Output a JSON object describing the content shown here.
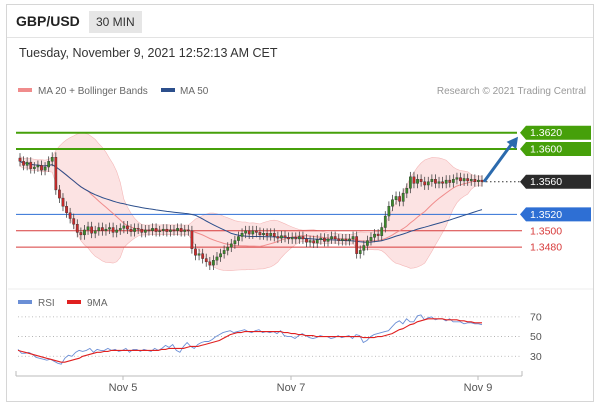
{
  "header": {
    "symbol": "GBP/USD",
    "timeframe": "30 MIN"
  },
  "datetime": "Tuesday, November 9, 2021 12:52:13 AM CET",
  "legend": {
    "ma20": {
      "label": "MA 20 + Bollinger Bands",
      "color": "#f08c8c"
    },
    "ma50": {
      "label": "MA 50",
      "color": "#2c4f8c"
    }
  },
  "credit": "Research © 2021 Trading Central",
  "rsi_legend": {
    "rsi": {
      "label": "RSI",
      "color": "#6b8fd6"
    },
    "ma9": {
      "label": "9MA",
      "color": "#e02020"
    }
  },
  "chart_data": [
    {
      "type": "candlestick",
      "title": "GBP/USD",
      "ylim": [
        1.343,
        1.366
      ],
      "x_ticks": [
        "Nov 5",
        "Nov 7",
        "Nov 9"
      ],
      "closes": [
        1.3585,
        1.358,
        1.3584,
        1.3576,
        1.3578,
        1.358,
        1.3574,
        1.3578,
        1.3585,
        1.359,
        1.355,
        1.354,
        1.353,
        1.3522,
        1.3515,
        1.3508,
        1.3498,
        1.3495,
        1.3501,
        1.3505,
        1.3497,
        1.35,
        1.3504,
        1.35,
        1.3502,
        1.3504,
        1.3498,
        1.3501,
        1.3503,
        1.3506,
        1.3502,
        1.3499,
        1.3503,
        1.3502,
        1.3498,
        1.3501,
        1.35,
        1.3503,
        1.3499,
        1.35,
        1.3502,
        1.3499,
        1.3501,
        1.35,
        1.3503,
        1.3499,
        1.3501,
        1.35,
        1.3478,
        1.347,
        1.3472,
        1.3466,
        1.3462,
        1.3458,
        1.3464,
        1.3468,
        1.3472,
        1.3476,
        1.348,
        1.3484,
        1.3488,
        1.3493,
        1.3497,
        1.35,
        1.3496,
        1.35,
        1.3498,
        1.3495,
        1.3497,
        1.3494,
        1.3497,
        1.3493,
        1.3491,
        1.3494,
        1.3492,
        1.349,
        1.3492,
        1.349,
        1.3493,
        1.349,
        1.3486,
        1.3488,
        1.3485,
        1.3489,
        1.3491,
        1.3487,
        1.349,
        1.3493,
        1.349,
        1.3488,
        1.349,
        1.3488,
        1.349,
        1.3493,
        1.3472,
        1.3476,
        1.3482,
        1.3488,
        1.3492,
        1.3496,
        1.3494,
        1.3504,
        1.3518,
        1.353,
        1.3538,
        1.3542,
        1.3536,
        1.3546,
        1.3552,
        1.3566,
        1.3558,
        1.3563,
        1.356,
        1.3556,
        1.356,
        1.3563,
        1.3558,
        1.356,
        1.3558,
        1.3562,
        1.3559,
        1.3563,
        1.3565,
        1.3561,
        1.3564,
        1.3561,
        1.3563,
        1.356,
        1.3562,
        1.356
      ],
      "levels": [
        {
          "value": 1.362,
          "label": "1.3620",
          "kind": "target"
        },
        {
          "value": 1.36,
          "label": "1.3600",
          "kind": "target"
        },
        {
          "value": 1.356,
          "label": "1.3560",
          "kind": "last"
        },
        {
          "value": 1.352,
          "label": "1.3520",
          "kind": "pivot"
        },
        {
          "value": 1.35,
          "label": "1.3500",
          "kind": "support"
        },
        {
          "value": 1.348,
          "label": "1.3480",
          "kind": "support"
        }
      ],
      "colors": {
        "up": "#3a8a2a",
        "down": "#c92a2a",
        "target": "#46a00a",
        "last": "#2b2b2b",
        "pivot": "#2e6fd4",
        "support": "#d73a3a",
        "band": "#fbd9d9"
      }
    },
    {
      "type": "line",
      "title": "RSI",
      "ylim": [
        10,
        80
      ],
      "y_ticks": [
        70,
        50,
        30
      ],
      "series": [
        {
          "name": "RSI",
          "values": [
            37,
            33,
            33,
            34,
            32,
            29,
            28,
            27,
            26,
            27,
            25,
            23,
            22,
            28,
            31,
            30,
            34,
            36,
            35,
            36,
            38,
            34,
            37,
            36,
            36,
            38,
            36,
            37,
            35,
            36,
            38,
            34,
            37,
            37,
            35,
            37,
            36,
            35,
            38,
            36,
            38,
            41,
            39,
            42,
            36,
            34,
            40,
            44,
            40,
            38,
            42,
            44,
            45,
            45,
            47,
            50,
            52,
            54,
            55,
            56,
            54,
            55,
            56,
            57,
            55,
            54,
            56,
            57,
            54,
            55,
            54,
            55,
            53,
            56,
            51,
            50,
            50,
            48,
            51,
            53,
            51,
            49,
            48,
            49,
            51,
            50,
            50,
            48,
            49,
            51,
            49,
            50,
            51,
            48,
            52,
            51,
            44,
            46,
            50,
            52,
            53,
            54,
            55,
            56,
            60,
            64,
            66,
            63,
            68,
            65,
            65,
            71,
            72,
            67,
            69,
            70,
            67,
            68,
            68,
            66,
            68,
            65,
            65,
            65,
            63,
            64,
            64,
            63,
            63,
            62
          ]
        },
        {
          "name": "9MA",
          "values": [
            36,
            35,
            34,
            33,
            32,
            31,
            30,
            29,
            28,
            27,
            26,
            25,
            24,
            24,
            25,
            26,
            27,
            28,
            30,
            31,
            32,
            33,
            34,
            34,
            35,
            35,
            36,
            36,
            36,
            36,
            36,
            36,
            36,
            36,
            36,
            36,
            36,
            36,
            36,
            36,
            37,
            37,
            38,
            38,
            38,
            38,
            38,
            39,
            40,
            40,
            40,
            41,
            42,
            43,
            44,
            45,
            46,
            48,
            50,
            52,
            53,
            54,
            54,
            55,
            55,
            55,
            55,
            55,
            55,
            55,
            55,
            55,
            55,
            55,
            54,
            54,
            53,
            53,
            52,
            52,
            51,
            51,
            51,
            50,
            50,
            50,
            50,
            50,
            50,
            50,
            50,
            50,
            50,
            50,
            50,
            50,
            49,
            49,
            49,
            49,
            50,
            50,
            51,
            52,
            53,
            55,
            57,
            58,
            60,
            62,
            63,
            65,
            66,
            67,
            68,
            68,
            68,
            68,
            68,
            67,
            67,
            67,
            67,
            66,
            66,
            65,
            65,
            64,
            64,
            64
          ]
        }
      ]
    }
  ]
}
